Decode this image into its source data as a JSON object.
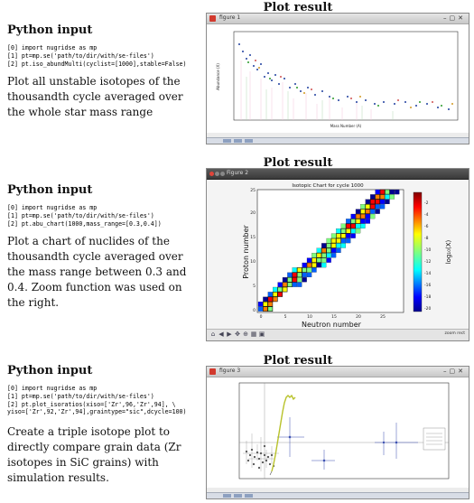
{
  "sections": [
    {
      "heading": "Python input",
      "code": [
        "[0] import nugridse as mp",
        "[1] pt=mp.se('path/to/dir/with/se-files')",
        "[2] pt.iso_abundMulti(cyclist=[1000],stable=False)"
      ],
      "description": "Plot all unstable isotopes of the thousandth cycle averaged over the whole star mass range",
      "plot_heading": "Plot result",
      "window_title": "figure 1",
      "ylabel": "Abundance (X)",
      "xlabel": "Mass Number (A)"
    },
    {
      "heading": "Python input",
      "code": [
        "[0] import nugridse as mp",
        "[1] pt=mp.se('path/to/dir/with/se-files')",
        "[2] pt.abu_chart(1000,mass_range=[0.3,0.4])"
      ],
      "description": "Plot a chart of nuclides of the thousandth cycle averaged over the mass range between 0.3 and 0.4. Zoom function was used on the right.",
      "plot_heading": "Plot result",
      "window_title": "Figure 2",
      "chart_title": "Isotopic Chart for cycle 1000",
      "ylabel": "Proton number",
      "xlabel": "Neutron number",
      "colorbar_label": "log₁₀(X)",
      "colorbar_ticks": [
        "-2",
        "-4",
        "-6",
        "-8",
        "-10",
        "-12",
        "-14",
        "-16",
        "-18",
        "-20"
      ],
      "x_ticks": [
        "0",
        "5",
        "10",
        "15",
        "20",
        "25"
      ],
      "y_ticks": [
        "0",
        "5",
        "10",
        "15",
        "20",
        "25"
      ],
      "status": "zoom rect"
    },
    {
      "heading": "Python input",
      "code": [
        "[0] import nugridse as mp",
        "[1] pt=mp.se('path/to/dir/with/se-files')",
        "[2] pt.plot_isoratios(xiso=['Zr',96,'Zr',94], \\",
        "yiso=['Zr',92,'Zr',94],graintype=\"sic\",dcycle=100)"
      ],
      "description": "Create a triple isotope plot to directly compare grain data (Zr isotopes in SiC grains) with simulation results.",
      "plot_heading": "Plot result",
      "window_title": "figure 3"
    }
  ],
  "colors": {
    "window_icon": "#d23a2e",
    "plot_line": "#1f3f9f",
    "grain_marker": "#3a4fb0",
    "model_curve": "#b8c22a"
  }
}
